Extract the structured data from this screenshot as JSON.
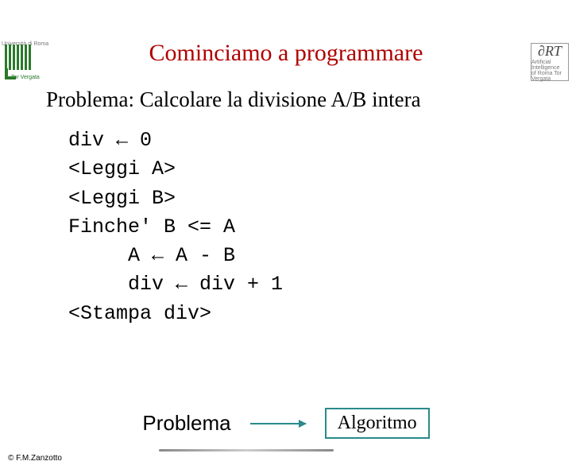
{
  "logo_left": {
    "top_text": "Università di Roma",
    "sub_text": "Tor Vergata"
  },
  "logo_right": {
    "icon": "∂RT",
    "sub1": "Artificial Intelligence",
    "sub2": "of Roma Tor Vergata"
  },
  "title": "Cominciamo a programmare",
  "subtitle": "Problema: Calcolare la divisione A/B intera",
  "code": {
    "l1": "div ← 0",
    "l2": "<Leggi A>",
    "l3": "<Leggi B>",
    "l4": "Finche' B <= A",
    "l5": "     A ← A - B",
    "l6": "     div ← div + 1",
    "l7": "<Stampa div>"
  },
  "bottom": {
    "problema": "Problema",
    "algoritmo": "Algoritmo"
  },
  "footer": "© F.M.Zanzotto",
  "colors": {
    "title": "#b00000",
    "accent": "#2a8a8a",
    "green": "#2a7a2a"
  }
}
